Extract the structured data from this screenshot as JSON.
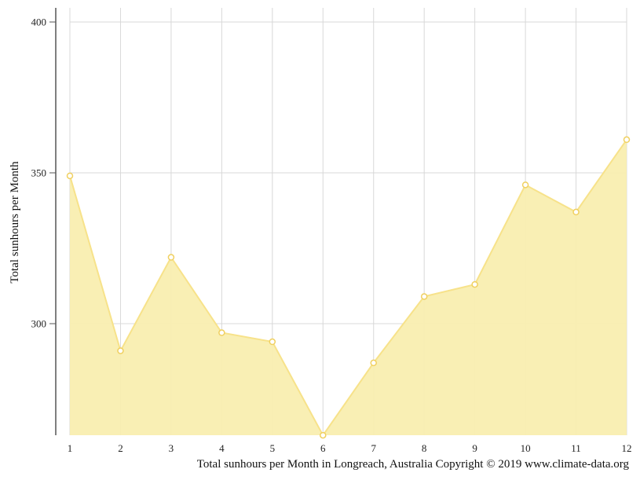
{
  "chart_data": {
    "type": "area",
    "x": [
      1,
      2,
      3,
      4,
      5,
      6,
      7,
      8,
      9,
      10,
      11,
      12
    ],
    "values": [
      349,
      291,
      322,
      297,
      294,
      263,
      287,
      309,
      313,
      346,
      337,
      361
    ],
    "ylabel": "Total sunhours per Month",
    "xlabel": "",
    "ylim": [
      263,
      404
    ],
    "yticks": [
      300,
      350,
      400
    ],
    "grid": true,
    "caption": "Total sunhours per Month in Longreach, Australia Copyright © 2019 www.climate-data.org",
    "colors": {
      "fill": "#f9eeb0",
      "line": "#f7e28a",
      "marker_stroke": "#f0d060",
      "grid": "#d8d8d8",
      "axis": "#555555"
    }
  }
}
